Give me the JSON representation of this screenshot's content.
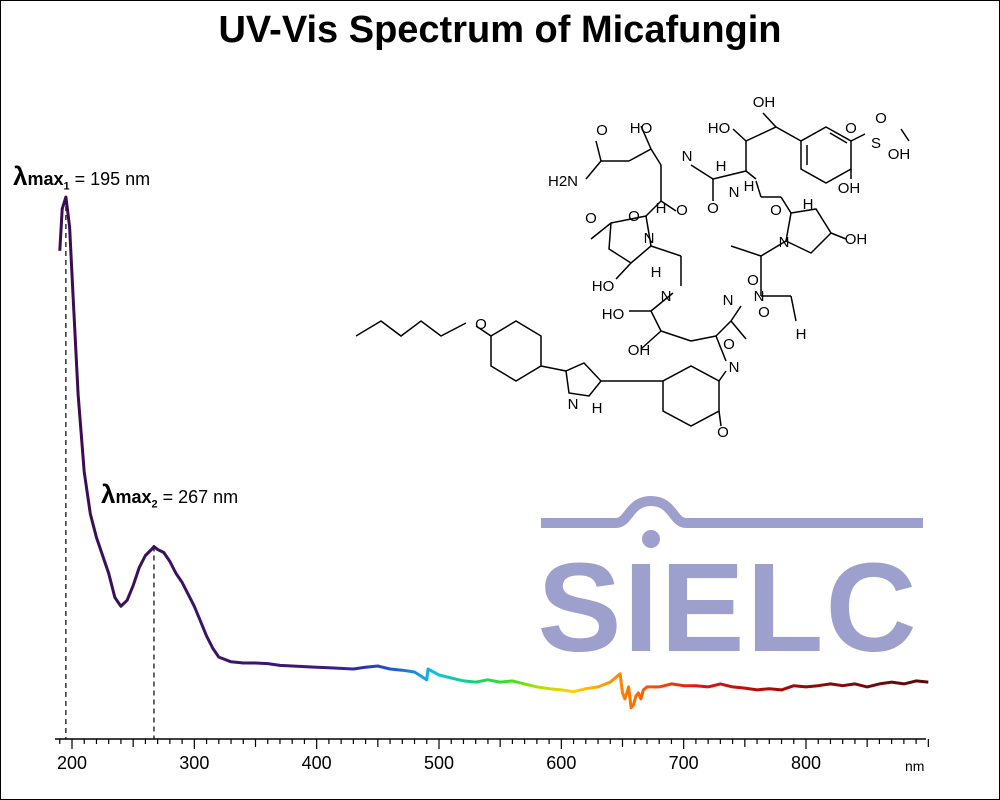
{
  "colors": {
    "logo": "#9da0cc",
    "axis": "#000000"
  },
  "chart_data": {
    "type": "line",
    "title": "UV-Vis Spectrum of Micafungin",
    "xlabel": "nm",
    "ylabel": "",
    "xlim": [
      190,
      900
    ],
    "x_ticks": [
      200,
      300,
      400,
      500,
      600,
      700,
      800
    ],
    "y_axis_visible": false,
    "grid": false,
    "line_coloring": "wavelength spectrum gradient (violet to dark red)",
    "peaks": [
      {
        "name_main": "max",
        "sub": "1",
        "text": " = 195 nm",
        "x": 195
      },
      {
        "name_main": "max",
        "sub": "2",
        "text": " = 267 nm",
        "x": 267
      }
    ],
    "series": [
      {
        "x": [
          190,
          192,
          195,
          198,
          201,
          205,
          210,
          215,
          220,
          225,
          230,
          235,
          240,
          245,
          250,
          255,
          260,
          265,
          267,
          270,
          275,
          280,
          285,
          290,
          295,
          300,
          305,
          310,
          315,
          320,
          330,
          340,
          350,
          360,
          370,
          380,
          390,
          400,
          410,
          420,
          430,
          440,
          450,
          460,
          470,
          480,
          490,
          491,
          500,
          510,
          520,
          530,
          540,
          550,
          560,
          570,
          580,
          590,
          600,
          610,
          620,
          630,
          640,
          648,
          650,
          652,
          655,
          657,
          659,
          661,
          663,
          665,
          667,
          670,
          680,
          690,
          700,
          710,
          720,
          730,
          740,
          750,
          760,
          770,
          780,
          790,
          800,
          810,
          820,
          830,
          840,
          850,
          860,
          870,
          880,
          890,
          900
        ],
        "y": [
          0.7,
          0.77,
          0.79,
          0.74,
          0.62,
          0.46,
          0.33,
          0.26,
          0.22,
          0.19,
          0.16,
          0.12,
          0.105,
          0.115,
          0.14,
          0.17,
          0.19,
          0.2,
          0.205,
          0.2,
          0.195,
          0.18,
          0.16,
          0.145,
          0.125,
          0.105,
          0.08,
          0.055,
          0.035,
          0.02,
          0.012,
          0.01,
          0.01,
          0.009,
          0.006,
          0.005,
          0.004,
          0.003,
          0.002,
          0.001,
          0.0,
          0.003,
          0.005,
          0.0,
          -0.002,
          -0.005,
          -0.018,
          0.0,
          -0.01,
          -0.015,
          -0.02,
          -0.022,
          -0.018,
          -0.022,
          -0.02,
          -0.025,
          -0.03,
          -0.033,
          -0.035,
          -0.038,
          -0.033,
          -0.03,
          -0.022,
          -0.008,
          -0.04,
          -0.05,
          -0.03,
          -0.065,
          -0.06,
          -0.045,
          -0.04,
          -0.05,
          -0.035,
          -0.03,
          -0.03,
          -0.025,
          -0.028,
          -0.028,
          -0.03,
          -0.025,
          -0.03,
          -0.032,
          -0.035,
          -0.033,
          -0.035,
          -0.028,
          -0.03,
          -0.028,
          -0.025,
          -0.028,
          -0.025,
          -0.03,
          -0.025,
          -0.022,
          -0.025,
          -0.02,
          -0.022
        ]
      }
    ]
  },
  "structure": {
    "atom_labels": [
      "OH",
      "HO",
      "O",
      "S",
      "OH",
      "OH",
      "O",
      "H",
      "O",
      "H",
      "N",
      "H2N",
      "N",
      "H",
      "O",
      "N",
      "OH",
      "HO",
      "O",
      "N",
      "H",
      "O",
      "HO",
      "N",
      "H",
      "HO",
      "OH",
      "O",
      "N",
      "O",
      "N",
      "O",
      "N",
      "H",
      "O",
      "N",
      "H",
      "O",
      "O",
      "O"
    ]
  },
  "logo": {
    "text": "SIELC"
  }
}
